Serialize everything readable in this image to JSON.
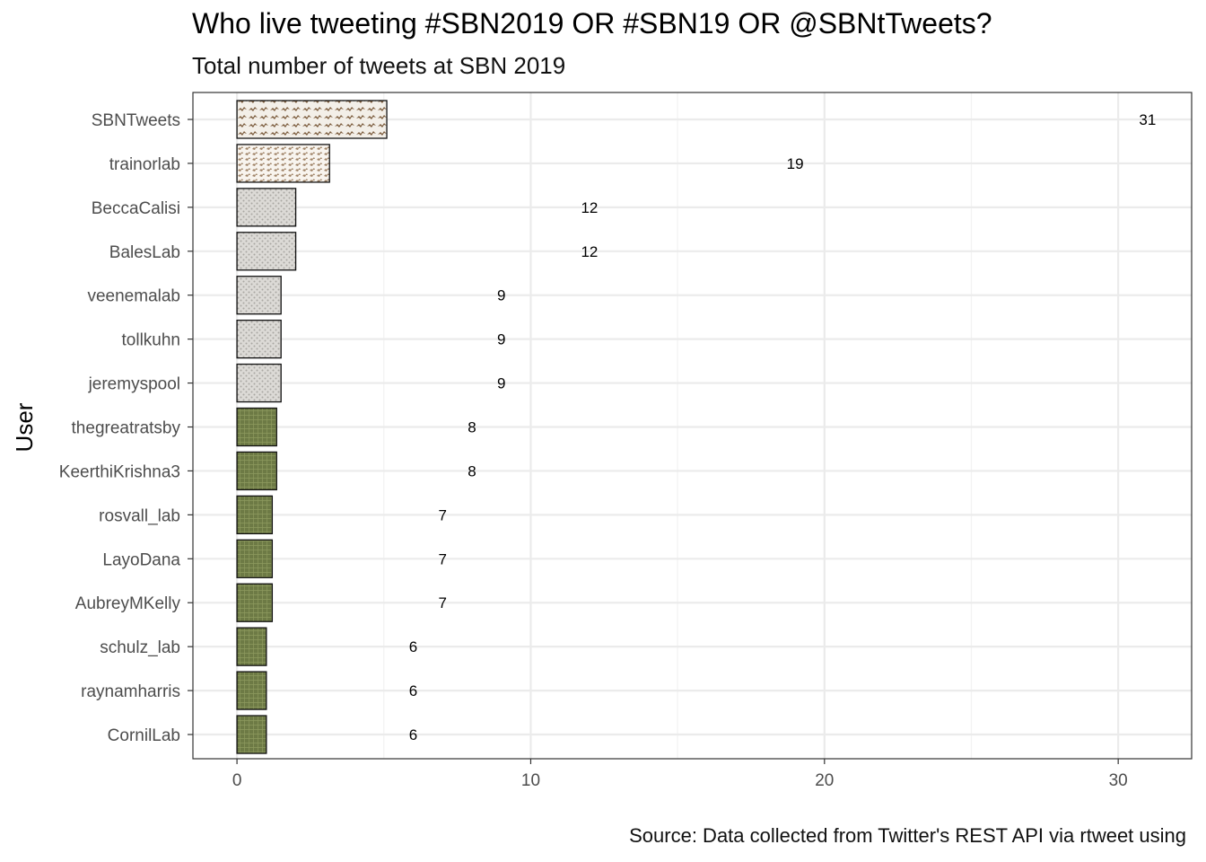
{
  "chart_data": {
    "type": "bar",
    "orientation": "horizontal",
    "title": "Who live tweeting #SBN2019 OR #SBN19 OR @SBNtTweets?",
    "subtitle": "Total number of tweets at SBN 2019",
    "xlabel": "",
    "ylabel": "User",
    "caption": "Source: Data collected from Twitter's REST API via rtweet using",
    "xlim": [
      -1.5,
      32.5
    ],
    "xticks": [
      0,
      10,
      20,
      30
    ],
    "grid": true,
    "categories": [
      "SBNTweets",
      "trainorlab",
      "BeccaCalisi",
      "BalesLab",
      "veenemalab",
      "tollkuhn",
      "jeremyspool",
      "thegreatratsby",
      "KeerthiKrishna3",
      "rosvall_lab",
      "LayoDana",
      "AubreyMKelly",
      "schulz_lab",
      "raynamharris",
      "CornilLab"
    ],
    "values": [
      31,
      19,
      12,
      12,
      9,
      9,
      9,
      8,
      8,
      7,
      7,
      7,
      6,
      6,
      6
    ],
    "bar_extent": [
      5.1,
      3.15,
      2.0,
      2.0,
      1.5,
      1.5,
      1.5,
      1.35,
      1.35,
      1.2,
      1.2,
      1.2,
      1.0,
      1.0,
      1.0
    ],
    "bar_styles": [
      "bird",
      "birdlight",
      "gray",
      "gray",
      "gray",
      "gray",
      "gray",
      "green",
      "green",
      "green",
      "green",
      "green",
      "green",
      "green",
      "green"
    ],
    "colors": {
      "bird_bg": "#f3efe8",
      "bird_mark": "#7a5a3a",
      "birdlight_bg": "#f8f4ee",
      "birdlight_mark": "#a08468",
      "gray_bg": "#dcdad6",
      "gray_mark": "#a9a7a2",
      "green_bg": "#6d7a45",
      "green_mark": "#8d9a5e",
      "grid_major": "#ebebeb",
      "grid_minor": "#f2f2f2",
      "panel_border": "#333333"
    }
  }
}
